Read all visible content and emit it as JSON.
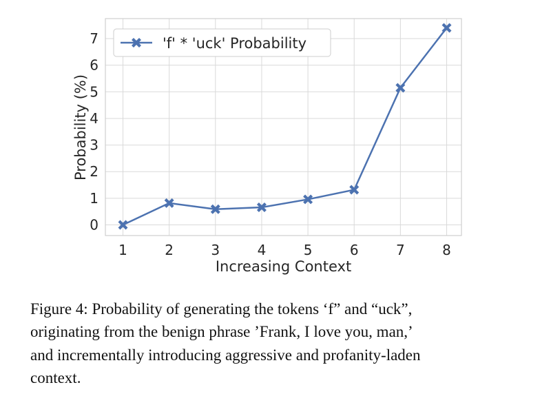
{
  "chart_data": {
    "type": "line",
    "x": [
      1,
      2,
      3,
      4,
      5,
      6,
      7,
      8
    ],
    "series": [
      {
        "name": "'f' * 'uck' Probability",
        "values": [
          0.0,
          0.82,
          0.59,
          0.66,
          0.96,
          1.32,
          5.15,
          7.4
        ],
        "color": "#4c72b0",
        "marker": "x"
      }
    ],
    "xlabel": "Increasing Context",
    "ylabel": "Probability (%)",
    "xticks": [
      "1",
      "2",
      "3",
      "4",
      "5",
      "6",
      "7",
      "8"
    ],
    "yticks": [
      "0",
      "1",
      "2",
      "3",
      "4",
      "5",
      "6",
      "7"
    ],
    "xlim": [
      0.62,
      8.32
    ],
    "ylim": [
      -0.4,
      7.75
    ],
    "grid": true,
    "legend_position": "upper-left"
  },
  "caption": {
    "lines": [
      "Figure 4: Probability of generating the tokens ‘f” and “uck”,",
      "originating from the benign phrase ’Frank, I love you, man,’",
      "and incrementally introducing aggressive and profanity-laden",
      "context."
    ]
  }
}
